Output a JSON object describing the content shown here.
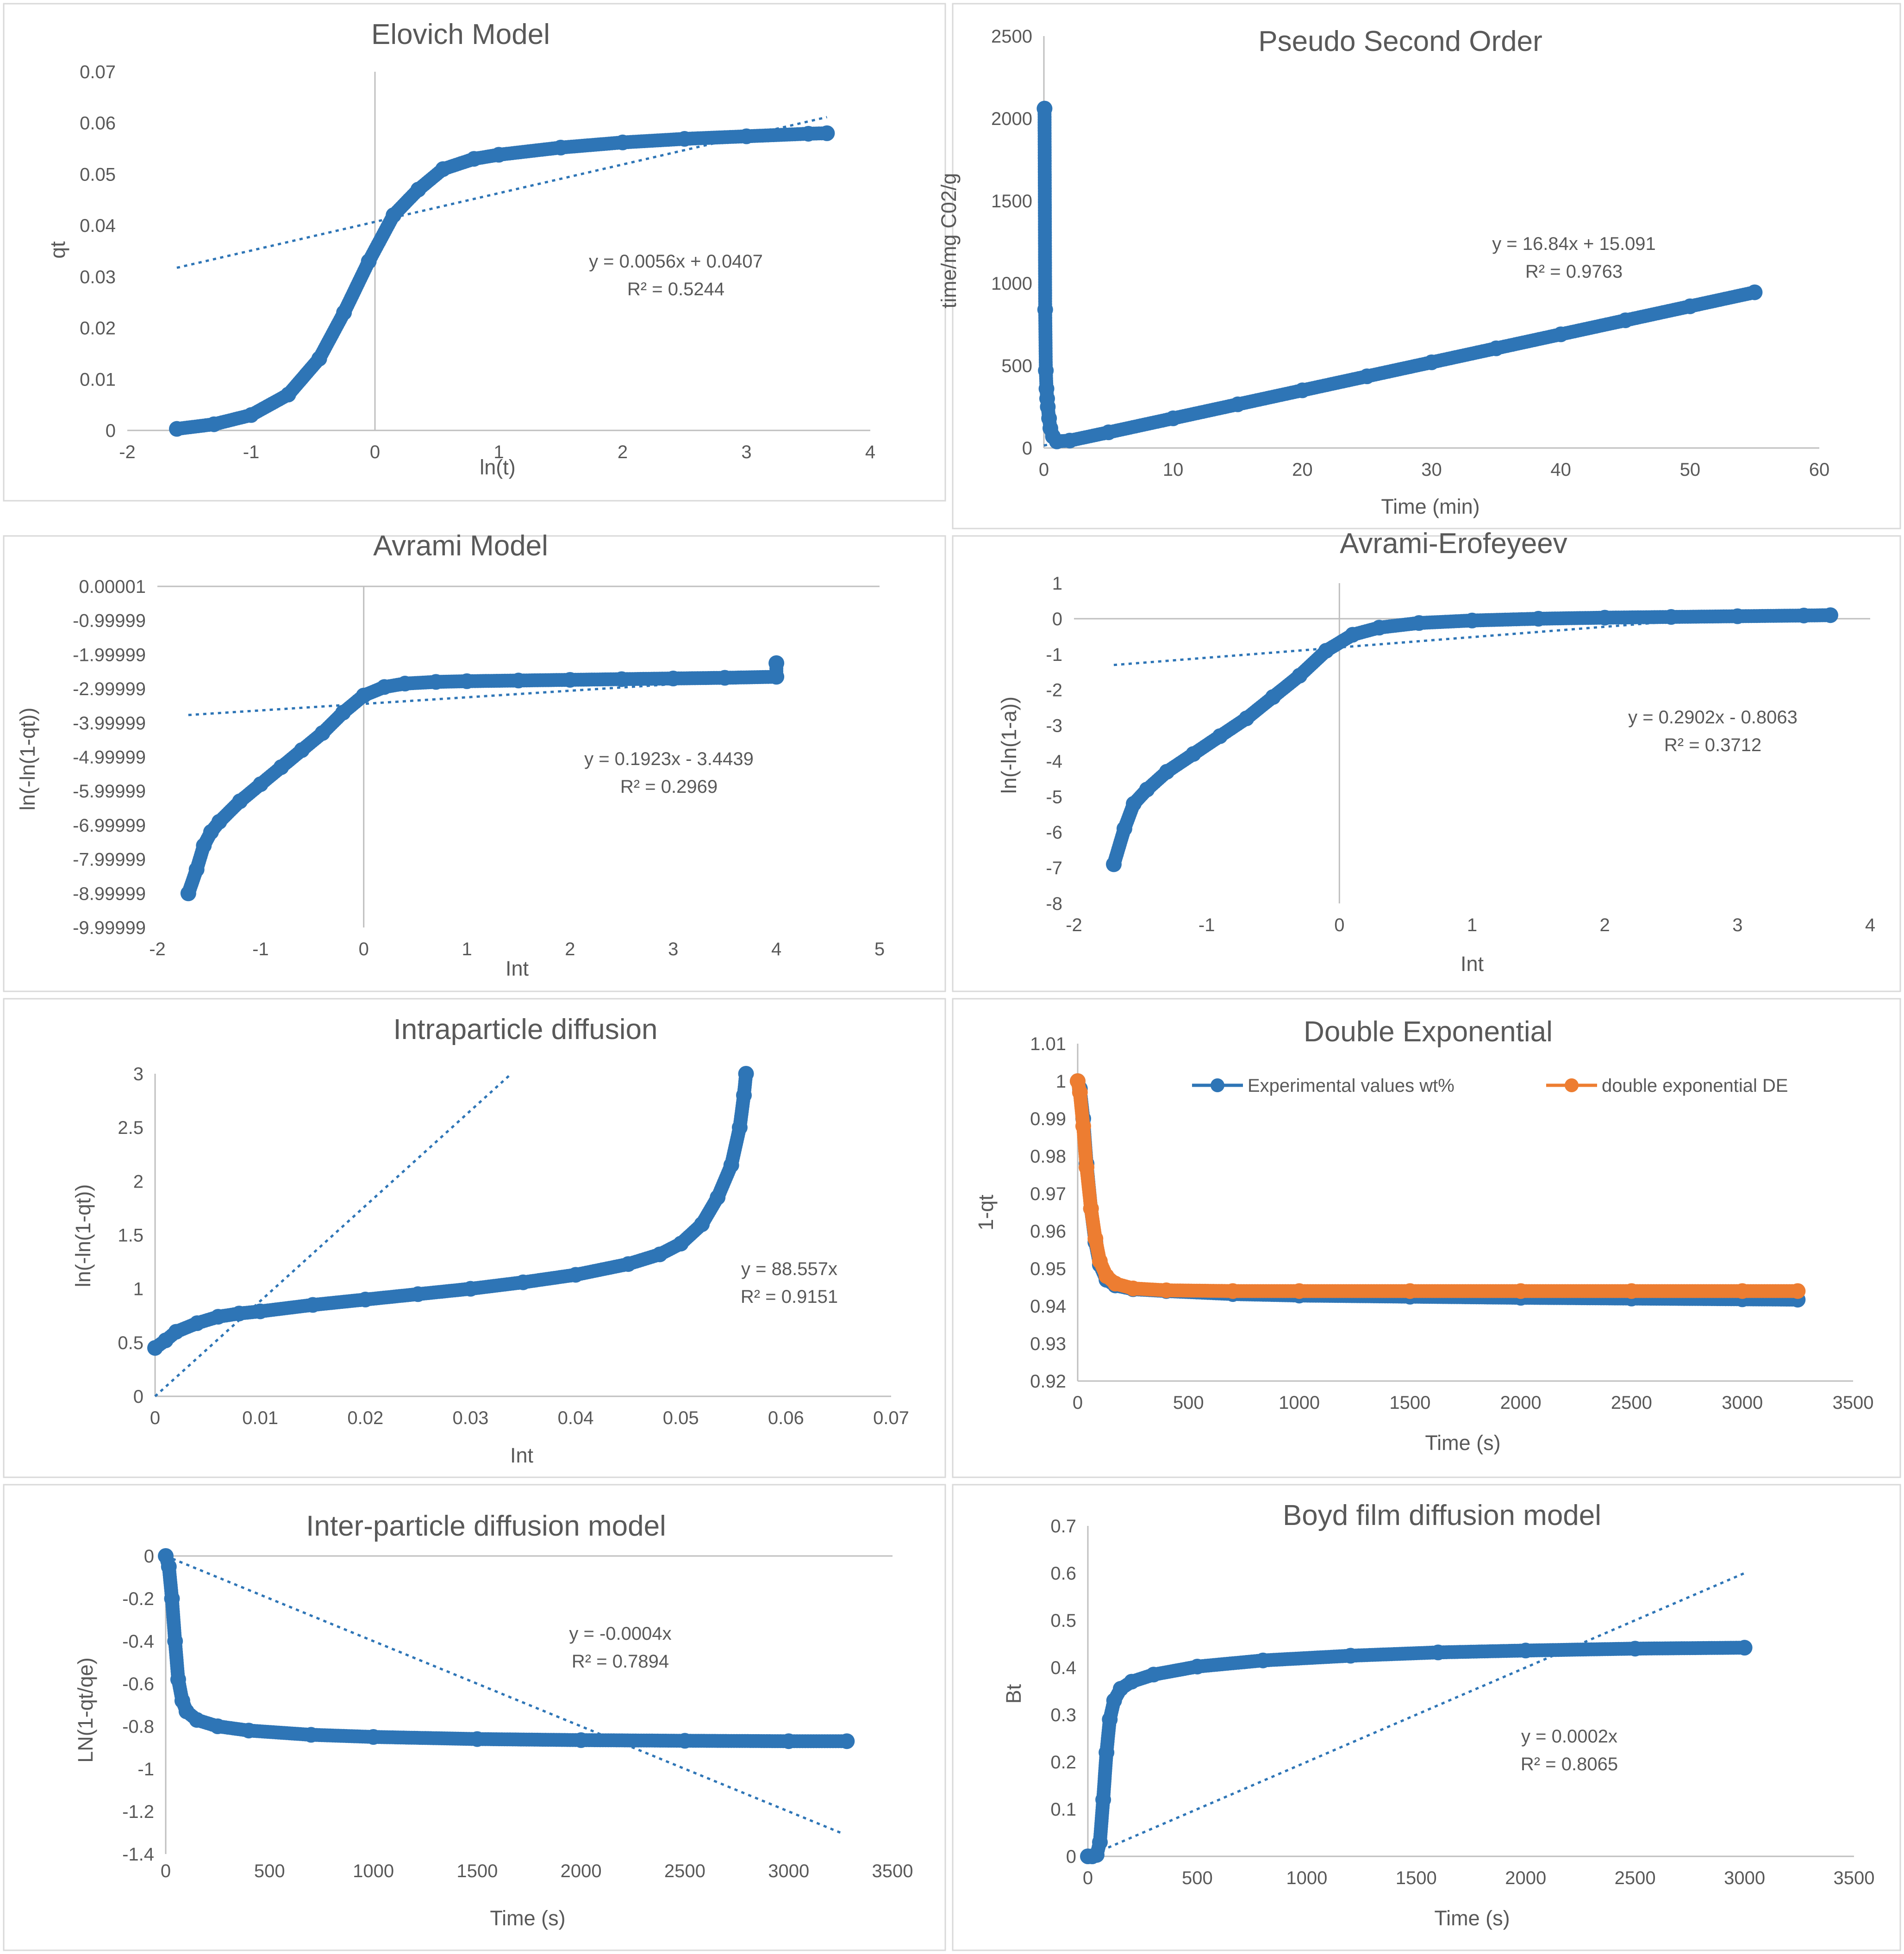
{
  "chart_data": [
    {
      "type": "scatter",
      "title": "Elovich Model",
      "xlabel": "ln(t)",
      "ylabel": "qt",
      "xlim": [
        -2,
        4
      ],
      "ylim": [
        0,
        0.07
      ],
      "xticks": [
        -2,
        -1,
        0,
        1,
        2,
        3,
        4
      ],
      "yticks": [
        0,
        0.01,
        0.02,
        0.03,
        0.04,
        0.05,
        0.06,
        0.07
      ],
      "color": "#2e75b6",
      "series": [
        {
          "name": "qt",
          "x": [
            -1.6,
            -1.3,
            -1.0,
            -0.7,
            -0.45,
            -0.25,
            -0.05,
            0.15,
            0.35,
            0.55,
            0.8,
            1.0,
            1.5,
            2.0,
            2.5,
            3.0,
            3.5,
            3.65
          ],
          "y": [
            0.0003,
            0.0012,
            0.003,
            0.007,
            0.014,
            0.023,
            0.033,
            0.042,
            0.047,
            0.051,
            0.053,
            0.0538,
            0.0552,
            0.0562,
            0.0569,
            0.0574,
            0.0579,
            0.058
          ]
        }
      ],
      "trendline": {
        "slope": 0.0056,
        "intercept": 0.0407,
        "x_range": [
          -1.6,
          3.65
        ]
      },
      "equation": "y = 0.0056x + 0.0407",
      "r2": "R² = 0.5244"
    },
    {
      "type": "scatter",
      "title": "Pseudo Second Order",
      "xlabel": "Time (min)",
      "ylabel": "time/mg C02/g",
      "xlim": [
        0,
        60
      ],
      "ylim": [
        0,
        2500
      ],
      "xticks": [
        0,
        10,
        20,
        30,
        40,
        50,
        60
      ],
      "yticks": [
        0,
        500,
        1000,
        1500,
        2000,
        2500
      ],
      "color": "#2e75b6",
      "series": [
        {
          "name": "t/qt",
          "x": [
            0.05,
            0.1,
            0.15,
            0.2,
            0.25,
            0.3,
            0.4,
            0.5,
            0.7,
            1.0,
            2,
            5,
            10,
            15,
            20,
            25,
            30,
            35,
            40,
            45,
            50,
            55
          ],
          "y": [
            2060,
            840,
            470,
            360,
            300,
            250,
            180,
            120,
            70,
            40,
            45,
            95,
            180,
            265,
            350,
            435,
            520,
            605,
            690,
            775,
            860,
            945
          ]
        }
      ],
      "trendline": {
        "slope": 16.84,
        "intercept": 15.091,
        "x_range": [
          0,
          55
        ]
      },
      "equation": "y = 16.84x + 15.091",
      "r2": "R² = 0.9763"
    },
    {
      "type": "scatter",
      "title": "Avrami Model",
      "xlabel": "Int",
      "ylabel": "ln(-ln(1-qt))",
      "xlim": [
        -2,
        5
      ],
      "ylim": [
        -9.99999,
        1e-05
      ],
      "xticks": [
        -2,
        -1,
        0,
        1,
        2,
        3,
        4,
        5
      ],
      "yticks": [
        1e-05,
        -0.99999,
        -1.99999,
        -2.99999,
        -3.99999,
        -4.99999,
        -5.99999,
        -6.99999,
        -7.99999,
        -8.99999,
        -9.99999
      ],
      "color": "#2e75b6",
      "series": [
        {
          "name": "ln(-ln(1-qt))",
          "x": [
            -1.7,
            -1.62,
            -1.55,
            -1.48,
            -1.4,
            -1.2,
            -1.0,
            -0.8,
            -0.6,
            -0.4,
            -0.2,
            0.0,
            0.2,
            0.4,
            0.7,
            1.0,
            1.5,
            2.0,
            2.5,
            3.0,
            3.5,
            4.0,
            4.0
          ],
          "y": [
            -9.0,
            -8.3,
            -7.6,
            -7.2,
            -6.9,
            -6.3,
            -5.8,
            -5.3,
            -4.8,
            -4.3,
            -3.7,
            -3.2,
            -2.95,
            -2.85,
            -2.8,
            -2.78,
            -2.76,
            -2.74,
            -2.72,
            -2.7,
            -2.68,
            -2.65,
            -2.25
          ]
        }
      ],
      "trendline": {
        "slope": 0.1923,
        "intercept": -3.4439,
        "x_range": [
          -1.7,
          4.0
        ]
      },
      "equation": "y = 0.1923x - 3.4439",
      "r2": "R² = 0.2969"
    },
    {
      "type": "scatter",
      "title": "Avrami-Erofeyeev",
      "xlabel": "Int",
      "ylabel": "ln(-ln(1-a))",
      "xlim": [
        -2,
        4
      ],
      "ylim": [
        -8,
        1
      ],
      "xticks": [
        -2,
        -1,
        0,
        1,
        2,
        3,
        4
      ],
      "yticks": [
        1,
        0,
        -1,
        -2,
        -3,
        -4,
        -5,
        -6,
        -7,
        -8
      ],
      "color": "#2e75b6",
      "series": [
        {
          "name": "ln(-ln(1-a))",
          "x": [
            -1.7,
            -1.62,
            -1.55,
            -1.45,
            -1.3,
            -1.1,
            -0.9,
            -0.7,
            -0.5,
            -0.3,
            -0.1,
            0.1,
            0.3,
            0.6,
            1.0,
            1.5,
            2.0,
            2.5,
            3.0,
            3.5,
            3.7
          ],
          "y": [
            -6.9,
            -5.9,
            -5.2,
            -4.8,
            -4.3,
            -3.8,
            -3.3,
            -2.8,
            -2.2,
            -1.6,
            -0.9,
            -0.45,
            -0.25,
            -0.12,
            -0.05,
            0.0,
            0.03,
            0.05,
            0.07,
            0.09,
            0.1
          ]
        }
      ],
      "trendline": {
        "slope": 0.2902,
        "intercept": -0.8063,
        "x_range": [
          -1.7,
          3.7
        ]
      },
      "equation": "y = 0.2902x - 0.8063",
      "r2": "R² = 0.3712"
    },
    {
      "type": "scatter",
      "title": "Intraparticle diffusion",
      "xlabel": "Int",
      "ylabel": "ln(-ln(1-qt))",
      "xlim": [
        0,
        0.07
      ],
      "ylim": [
        0,
        3
      ],
      "xticks": [
        0,
        0.01,
        0.02,
        0.03,
        0.04,
        0.05,
        0.06,
        0.07
      ],
      "yticks": [
        0,
        0.5,
        1,
        1.5,
        2,
        2.5,
        3
      ],
      "color": "#2e75b6",
      "series": [
        {
          "name": "ln(-ln(1-qt))",
          "x": [
            0.0,
            0.001,
            0.002,
            0.004,
            0.006,
            0.008,
            0.01,
            0.015,
            0.02,
            0.025,
            0.03,
            0.035,
            0.04,
            0.045,
            0.048,
            0.05,
            0.052,
            0.0535,
            0.0548,
            0.0556,
            0.056,
            0.0562
          ],
          "y": [
            0.45,
            0.52,
            0.6,
            0.68,
            0.74,
            0.77,
            0.79,
            0.85,
            0.9,
            0.95,
            1.0,
            1.06,
            1.13,
            1.23,
            1.32,
            1.42,
            1.6,
            1.85,
            2.15,
            2.5,
            2.8,
            3.0
          ]
        }
      ],
      "trendline": {
        "slope": 88.557,
        "intercept": 0,
        "x_range": [
          0,
          0.0339
        ]
      },
      "equation": "y = 88.557x",
      "r2": "R² = 0.9151"
    },
    {
      "type": "line",
      "title": "Double Exponential",
      "xlabel": "Time (s)",
      "ylabel": "1-qt",
      "xlim": [
        0,
        3500
      ],
      "ylim": [
        0.92,
        1.01
      ],
      "xticks": [
        0,
        500,
        1000,
        1500,
        2000,
        2500,
        3000,
        3500
      ],
      "yticks": [
        1.01,
        1,
        0.99,
        0.98,
        0.97,
        0.96,
        0.95,
        0.94,
        0.93,
        0.92
      ],
      "series": [
        {
          "name": "Experimental values wt%",
          "color": "#2e75b6",
          "x": [
            0,
            10,
            25,
            40,
            60,
            80,
            100,
            130,
            170,
            250,
            400,
            700,
            1000,
            1500,
            2000,
            2500,
            3000,
            3250
          ],
          "y": [
            1.0,
            0.998,
            0.99,
            0.978,
            0.966,
            0.957,
            0.951,
            0.947,
            0.9455,
            0.9445,
            0.944,
            0.9432,
            0.9428,
            0.9425,
            0.9422,
            0.942,
            0.9418,
            0.9417
          ]
        },
        {
          "name": "double exponential DE",
          "color": "#ed7d31",
          "x": [
            0,
            10,
            25,
            40,
            60,
            80,
            100,
            130,
            170,
            250,
            400,
            700,
            1000,
            1500,
            2000,
            2500,
            3000,
            3250
          ],
          "y": [
            1.0,
            0.997,
            0.988,
            0.977,
            0.966,
            0.958,
            0.952,
            0.948,
            0.946,
            0.9447,
            0.9442,
            0.944,
            0.944,
            0.944,
            0.944,
            0.944,
            0.944,
            0.944
          ]
        }
      ],
      "legend": "top"
    },
    {
      "type": "scatter",
      "title": "Inter-particle diffusion model",
      "xlabel": "Time (s)",
      "ylabel": "LN(1-qt/qe)",
      "xlim": [
        0,
        3500
      ],
      "ylim": [
        -1.4,
        0
      ],
      "xticks": [
        0,
        500,
        1000,
        1500,
        2000,
        2500,
        3000,
        3500
      ],
      "yticks": [
        0,
        -0.2,
        -0.4,
        -0.6,
        -0.8,
        -1,
        -1.2,
        -1.4
      ],
      "color": "#2e75b6",
      "series": [
        {
          "name": "LN(1-qt/qe)",
          "x": [
            0,
            15,
            30,
            45,
            60,
            80,
            100,
            150,
            250,
            400,
            700,
            1000,
            1500,
            2000,
            2500,
            3000,
            3280
          ],
          "y": [
            0,
            -0.05,
            -0.2,
            -0.4,
            -0.58,
            -0.68,
            -0.73,
            -0.77,
            -0.8,
            -0.82,
            -0.84,
            -0.85,
            -0.86,
            -0.865,
            -0.868,
            -0.87,
            -0.87
          ]
        }
      ],
      "trendline": {
        "slope": -0.0004,
        "intercept": 0,
        "x_range": [
          0,
          3250
        ]
      },
      "equation": "y = -0.0004x",
      "r2": "R² = 0.7894"
    },
    {
      "type": "scatter",
      "title": "Boyd film diffusion model",
      "xlabel": "Time (s)",
      "ylabel": "Bt",
      "xlim": [
        0,
        3500
      ],
      "ylim": [
        0,
        0.7
      ],
      "xticks": [
        0,
        500,
        1000,
        1500,
        2000,
        2500,
        3000,
        3500
      ],
      "yticks": [
        0,
        0.1,
        0.2,
        0.3,
        0.4,
        0.5,
        0.6,
        0.7
      ],
      "color": "#2e75b6",
      "series": [
        {
          "name": "Bt",
          "x": [
            0,
            20,
            40,
            55,
            70,
            85,
            100,
            120,
            150,
            200,
            300,
            500,
            800,
            1200,
            1600,
            2000,
            2500,
            3000
          ],
          "y": [
            0,
            0.0,
            0.003,
            0.03,
            0.12,
            0.22,
            0.29,
            0.33,
            0.355,
            0.37,
            0.385,
            0.402,
            0.415,
            0.425,
            0.432,
            0.436,
            0.44,
            0.442
          ]
        }
      ],
      "trendline": {
        "slope": 0.0002,
        "intercept": 0,
        "x_range": [
          0,
          3000
        ]
      },
      "equation": "y = 0.0002x",
      "r2": "R² = 0.8065"
    }
  ]
}
